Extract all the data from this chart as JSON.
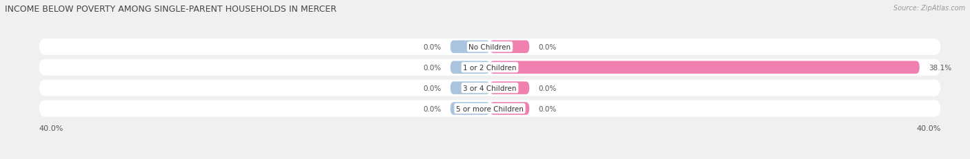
{
  "title": "INCOME BELOW POVERTY AMONG SINGLE-PARENT HOUSEHOLDS IN MERCER",
  "source": "Source: ZipAtlas.com",
  "categories": [
    "No Children",
    "1 or 2 Children",
    "3 or 4 Children",
    "5 or more Children"
  ],
  "single_father": [
    0.0,
    0.0,
    0.0,
    0.0
  ],
  "single_mother": [
    0.0,
    38.1,
    0.0,
    0.0
  ],
  "father_color": "#aac4e0",
  "mother_color": "#f080b0",
  "axis_min": -40.0,
  "axis_max": 40.0,
  "stub_size": 3.5,
  "bar_height": 0.62,
  "bg_color": "#f0f0f0",
  "bar_row_bg": "#e4e4e4",
  "label_fontsize": 7.5,
  "title_fontsize": 9,
  "source_fontsize": 7,
  "tick_fontsize": 8,
  "legend_fontsize": 8,
  "bottom_left_label": "40.0%",
  "bottom_right_label": "40.0%"
}
